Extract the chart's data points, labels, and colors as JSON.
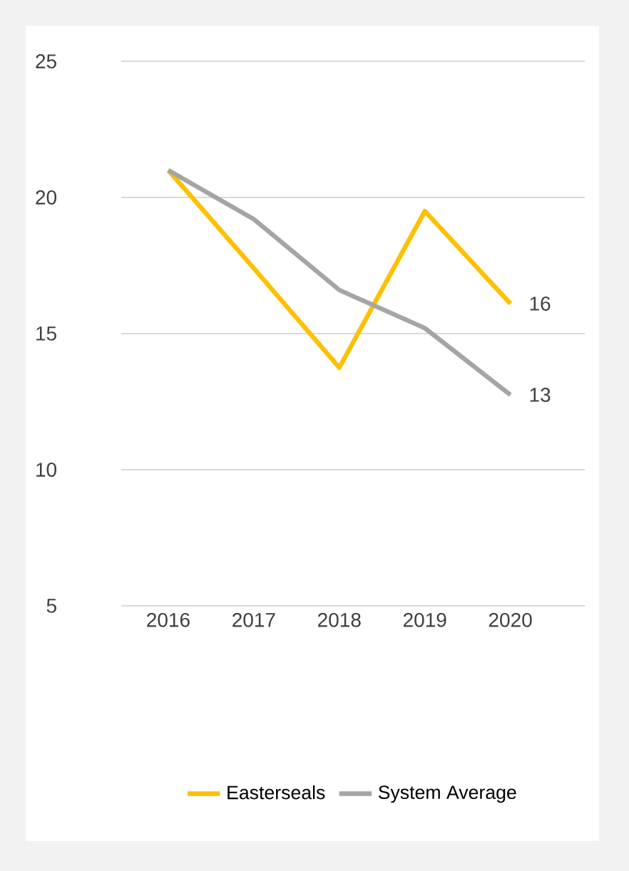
{
  "chart_data": {
    "type": "line",
    "categories": [
      "2016",
      "2017",
      "2018",
      "2019",
      "2020"
    ],
    "series": [
      {
        "name": "Easterseals",
        "color": "#ffc000",
        "values": [
          21,
          17.4,
          13.75,
          19.5,
          16.1
        ],
        "value_labels": [
          null,
          null,
          null,
          null,
          "16"
        ]
      },
      {
        "name": "System Average",
        "color": "#a5a5a5",
        "values": [
          21,
          19.2,
          16.6,
          15.2,
          12.75
        ],
        "value_labels": [
          null,
          null,
          null,
          null,
          "13"
        ]
      }
    ],
    "ylim": [
      5,
      25
    ],
    "yticks": [
      5,
      10,
      15,
      20,
      25
    ],
    "grid": "y",
    "legend": "bottom",
    "marker": "none",
    "line_style": "solid"
  }
}
